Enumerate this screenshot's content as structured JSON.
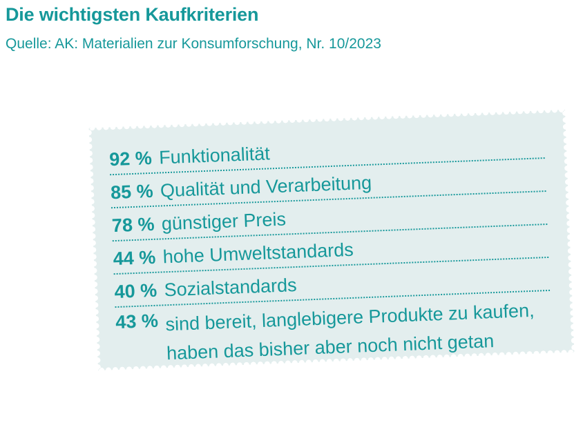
{
  "title": "Die wichtigsten Kaufkriterien",
  "subtitle": "Quelle: AK: Materialien zur Konsumforschung, Nr. 10/2023",
  "colors": {
    "accent": "#16989a",
    "stamp_background": "#e3eeee"
  },
  "chart_data": {
    "type": "table",
    "title": "Die wichtigsten Kaufkriterien",
    "rows": [
      {
        "value_label": "92 %",
        "value": 92,
        "label": "Funktionalität"
      },
      {
        "value_label": "85 %",
        "value": 85,
        "label": "Qualität und Verarbeitung"
      },
      {
        "value_label": "78 %",
        "value": 78,
        "label": "günstiger Preis"
      },
      {
        "value_label": "44 %",
        "value": 44,
        "label": "hohe Umweltstandards"
      },
      {
        "value_label": "40 %",
        "value": 40,
        "label": "Sozialstandards"
      },
      {
        "value_label": "43 %",
        "value": 43,
        "label": "sind bereit, langlebigere Produkte zu kaufen, haben das bisher aber noch nicht getan"
      }
    ]
  }
}
